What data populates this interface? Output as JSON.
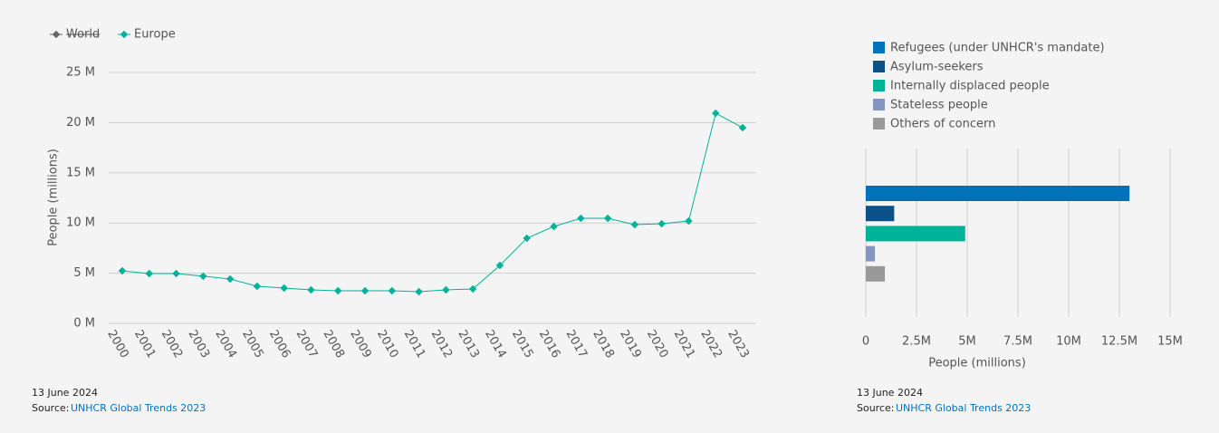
{
  "chart_data": [
    {
      "type": "line",
      "y_label": "People (millions)",
      "categories": [
        "2000",
        "2001",
        "2002",
        "2003",
        "2004",
        "2005",
        "2006",
        "2007",
        "2008",
        "2009",
        "2010",
        "2011",
        "2012",
        "2013",
        "2014",
        "2015",
        "2016",
        "2017",
        "2018",
        "2019",
        "2020",
        "2021",
        "2022",
        "2023"
      ],
      "series": [
        {
          "name": "World",
          "color": "#666666",
          "hidden": true,
          "values": [
            null,
            null,
            null,
            null,
            null,
            null,
            null,
            null,
            null,
            null,
            null,
            null,
            null,
            null,
            null,
            null,
            null,
            null,
            null,
            null,
            null,
            null,
            null,
            null
          ]
        },
        {
          "name": "Europe",
          "color": "#00b398",
          "values": [
            5.23,
            4.96,
            4.96,
            4.7,
            4.42,
            3.7,
            3.52,
            3.34,
            3.25,
            3.25,
            3.25,
            3.16,
            3.34,
            3.43,
            5.78,
            8.48,
            9.66,
            10.47,
            10.47,
            9.84,
            9.93,
            10.2,
            20.94,
            19.5
          ]
        }
      ],
      "ylim": [
        0,
        25
      ],
      "yticks": [
        {
          "value": 0,
          "label": "0 M"
        },
        {
          "value": 5,
          "label": "5 M"
        },
        {
          "value": 10,
          "label": "10 M"
        },
        {
          "value": 15,
          "label": "15 M"
        },
        {
          "value": 20,
          "label": "20 M"
        },
        {
          "value": 25,
          "label": "25 M"
        }
      ],
      "grid": true,
      "date": "13 June 2024",
      "source_prefix": "Source:",
      "source": "UNHCR Global Trends 2023"
    },
    {
      "type": "hbar",
      "x_label": "People (millions)",
      "series": [
        {
          "name": "Refugees (under UNHCR's mandate)",
          "color": "#0072bc",
          "values": [
            13.0
          ]
        },
        {
          "name": "Asylum-seekers",
          "color": "#0a5289",
          "values": [
            1.4
          ]
        },
        {
          "name": "Internally displaced people",
          "color": "#00b398",
          "values": [
            4.9
          ]
        },
        {
          "name": "Stateless people",
          "color": "#8395c0",
          "values": [
            0.45
          ]
        },
        {
          "name": "Others of concern",
          "color": "#999999",
          "values": [
            0.94
          ]
        }
      ],
      "xlim": [
        0,
        15
      ],
      "xticks": [
        0,
        {
          "value": 2.5,
          "label": "2.5M"
        },
        {
          "value": 5,
          "label": "5M"
        },
        {
          "value": 7.5,
          "label": "7.5M"
        },
        {
          "value": 10,
          "label": "10M"
        },
        {
          "value": 12.5,
          "label": "12.5M"
        },
        {
          "value": 15,
          "label": "15M"
        }
      ],
      "grid": true,
      "date": "13 June 2024",
      "source_prefix": "Source:",
      "source": "UNHCR Global Trends 2023"
    }
  ]
}
